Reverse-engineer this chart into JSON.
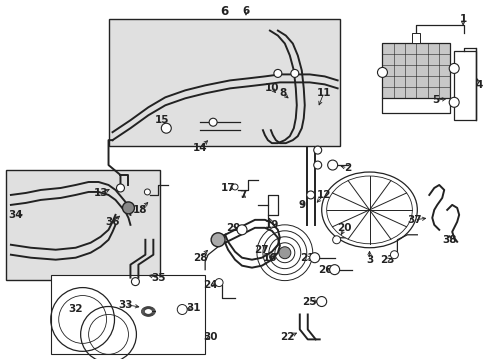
{
  "bg_color": "#ffffff",
  "line_color": "#222222",
  "fill_light": "#e0e0e0",
  "fig_w": 4.89,
  "fig_h": 3.6,
  "dpi": 100
}
